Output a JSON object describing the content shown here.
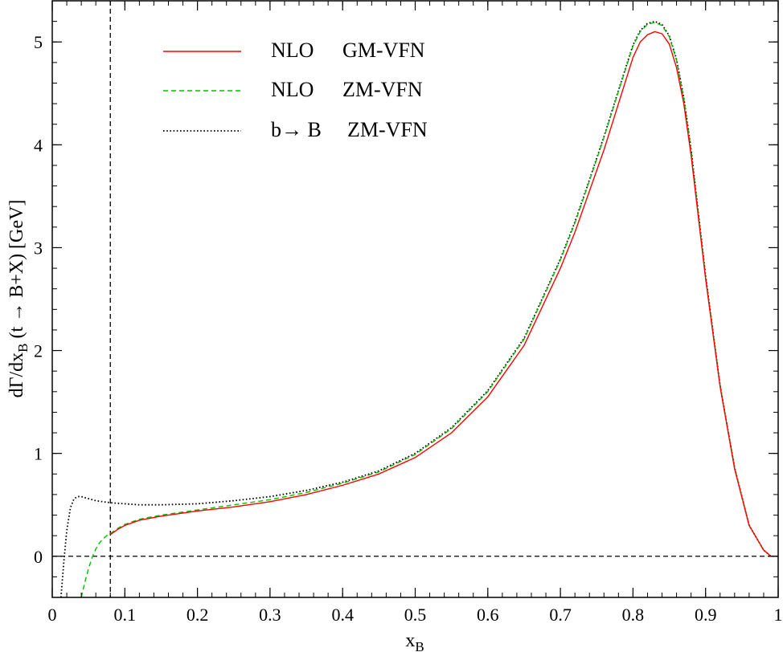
{
  "chart_data": {
    "type": "line",
    "xlabel": "x",
    "xlabel_sub": "B",
    "ylabel_parts": {
      "pre": "dΓ/dx",
      "sub": "B",
      "post": " (t → B+X)  [GeV]"
    },
    "xlim": [
      0,
      1
    ],
    "ylim": [
      -0.4,
      5.4
    ],
    "xticks": [
      {
        "value": 0,
        "label": "0"
      },
      {
        "value": 0.1,
        "label": "0.1"
      },
      {
        "value": 0.2,
        "label": "0.2"
      },
      {
        "value": 0.3,
        "label": "0.3"
      },
      {
        "value": 0.4,
        "label": "0.4"
      },
      {
        "value": 0.5,
        "label": "0.5"
      },
      {
        "value": 0.6,
        "label": "0.6"
      },
      {
        "value": 0.7,
        "label": "0.7"
      },
      {
        "value": 0.8,
        "label": "0.8"
      },
      {
        "value": 0.9,
        "label": "0.9"
      },
      {
        "value": 1,
        "label": "1"
      }
    ],
    "yticks": [
      {
        "value": 0,
        "label": "0"
      },
      {
        "value": 1,
        "label": "1"
      },
      {
        "value": 2,
        "label": "2"
      },
      {
        "value": 3,
        "label": "3"
      },
      {
        "value": 4,
        "label": "4"
      },
      {
        "value": 5,
        "label": "5"
      }
    ],
    "reference_lines": [
      {
        "orientation": "vertical",
        "value": 0.08,
        "style": "dashed",
        "color": "#000000"
      },
      {
        "orientation": "horizontal",
        "value": 0,
        "style": "dashed",
        "color": "#000000"
      }
    ],
    "legend_position": "top-left",
    "series": [
      {
        "name_a": "NLO",
        "name_b": "GM-VFN",
        "color": "#ff0000",
        "style": "solid",
        "x": [
          0.08,
          0.09,
          0.1,
          0.12,
          0.15,
          0.2,
          0.25,
          0.3,
          0.35,
          0.4,
          0.45,
          0.5,
          0.55,
          0.6,
          0.65,
          0.7,
          0.72,
          0.74,
          0.76,
          0.78,
          0.8,
          0.81,
          0.82,
          0.83,
          0.84,
          0.85,
          0.86,
          0.87,
          0.88,
          0.89,
          0.9,
          0.92,
          0.94,
          0.96,
          0.98,
          0.99,
          1.0
        ],
        "y": [
          0.21,
          0.26,
          0.3,
          0.35,
          0.39,
          0.44,
          0.48,
          0.53,
          0.6,
          0.69,
          0.8,
          0.96,
          1.2,
          1.55,
          2.05,
          2.8,
          3.15,
          3.55,
          3.95,
          4.4,
          4.85,
          5.0,
          5.07,
          5.1,
          5.08,
          4.98,
          4.75,
          4.4,
          3.9,
          3.3,
          2.7,
          1.65,
          0.85,
          0.3,
          0.06,
          0.0,
          0.0
        ]
      },
      {
        "name_a": "NLO",
        "name_b": "ZM-VFN",
        "color": "#00c000",
        "style": "dashed",
        "x": [
          0.04,
          0.045,
          0.05,
          0.055,
          0.06,
          0.065,
          0.07,
          0.075,
          0.08,
          0.09,
          0.1,
          0.12,
          0.15,
          0.2,
          0.25,
          0.3,
          0.35,
          0.4,
          0.45,
          0.5,
          0.55,
          0.6,
          0.65,
          0.7,
          0.72,
          0.74,
          0.76,
          0.78,
          0.8,
          0.81,
          0.82,
          0.83,
          0.84,
          0.85,
          0.86,
          0.87,
          0.88,
          0.89,
          0.9,
          0.92,
          0.94,
          0.96,
          0.98,
          0.99,
          1.0
        ],
        "y": [
          -0.4,
          -0.25,
          -0.12,
          -0.01,
          0.07,
          0.13,
          0.17,
          0.2,
          0.22,
          0.27,
          0.31,
          0.36,
          0.4,
          0.45,
          0.5,
          0.55,
          0.62,
          0.71,
          0.82,
          0.99,
          1.24,
          1.6,
          2.11,
          2.88,
          3.24,
          3.65,
          4.07,
          4.52,
          4.96,
          5.1,
          5.17,
          5.19,
          5.16,
          5.05,
          4.82,
          4.45,
          3.95,
          3.33,
          2.72,
          1.66,
          0.86,
          0.3,
          0.06,
          0.0,
          0.0
        ]
      },
      {
        "name_a": "b→ B",
        "name_b": "ZM-VFN",
        "color": "#000000",
        "style": "dotted",
        "x": [
          0.012,
          0.016,
          0.02,
          0.025,
          0.03,
          0.035,
          0.04,
          0.05,
          0.06,
          0.08,
          0.1,
          0.12,
          0.15,
          0.2,
          0.25,
          0.3,
          0.35,
          0.4,
          0.45,
          0.5,
          0.55,
          0.6,
          0.65,
          0.7,
          0.72,
          0.74,
          0.76,
          0.78,
          0.8,
          0.81,
          0.82,
          0.83,
          0.84,
          0.85,
          0.86,
          0.87,
          0.88,
          0.89,
          0.9,
          0.92,
          0.94,
          0.96,
          0.98,
          0.99,
          1.0
        ],
        "y": [
          -0.4,
          -0.05,
          0.25,
          0.47,
          0.56,
          0.58,
          0.58,
          0.56,
          0.54,
          0.52,
          0.51,
          0.5,
          0.5,
          0.51,
          0.54,
          0.58,
          0.64,
          0.72,
          0.83,
          1.0,
          1.25,
          1.61,
          2.12,
          2.89,
          3.25,
          3.66,
          4.08,
          4.53,
          4.97,
          5.11,
          5.18,
          5.2,
          5.17,
          5.06,
          4.83,
          4.46,
          3.96,
          3.34,
          2.73,
          1.66,
          0.86,
          0.3,
          0.06,
          0.0,
          0.0
        ]
      }
    ]
  }
}
